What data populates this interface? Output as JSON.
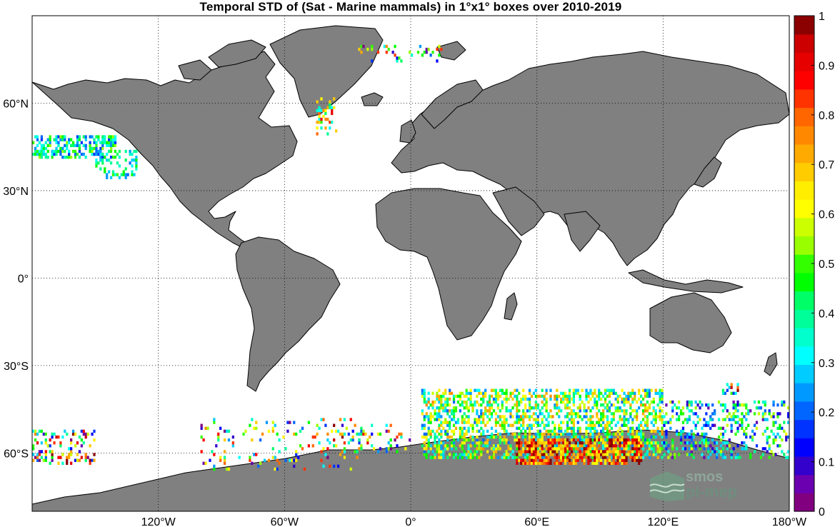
{
  "title": "Temporal STD of (Sat - Marine mammals) in 1°x1° boxes over 2010-2019",
  "map": {
    "lon_range": [
      -180,
      180
    ],
    "lat_range": [
      -80,
      90
    ],
    "lon_ticks": [
      {
        "value": -120,
        "label": "120°W"
      },
      {
        "value": -60,
        "label": "60°W"
      },
      {
        "value": 0,
        "label": "0°"
      },
      {
        "value": 60,
        "label": "60°E"
      },
      {
        "value": 120,
        "label": "120°E"
      },
      {
        "value": 180,
        "label": "180°W"
      }
    ],
    "lat_ticks": [
      {
        "value": 60,
        "label": "60°N"
      },
      {
        "value": 30,
        "label": "30°N"
      },
      {
        "value": 0,
        "label": "0°"
      },
      {
        "value": -30,
        "label": "30°S"
      },
      {
        "value": -60,
        "label": "60°S"
      }
    ],
    "grid": true,
    "land_color": "#808080",
    "ocean_color": "#ffffff"
  },
  "colorbar": {
    "min": 0,
    "max": 1,
    "tick_labels": [
      "0",
      "0.1",
      "0.2",
      "0.3",
      "0.4",
      "0.5",
      "0.6",
      "0.7",
      "0.8",
      "0.9",
      "1"
    ],
    "colors": [
      "#800080",
      "#6a00b0",
      "#3300cc",
      "#0000ff",
      "#0033ff",
      "#0066ff",
      "#0099ff",
      "#00ccff",
      "#00ffff",
      "#00ffcc",
      "#00ff99",
      "#00ff66",
      "#00ff00",
      "#33ff00",
      "#99ff00",
      "#ccff00",
      "#ffff00",
      "#ffee00",
      "#ffcc00",
      "#ffaa00",
      "#ff8800",
      "#ff6600",
      "#ff3300",
      "#ff0000",
      "#e60000",
      "#cc0000",
      "#8b0000"
    ]
  },
  "logo": {
    "line1": "smos",
    "line2": "pi-mep"
  }
}
